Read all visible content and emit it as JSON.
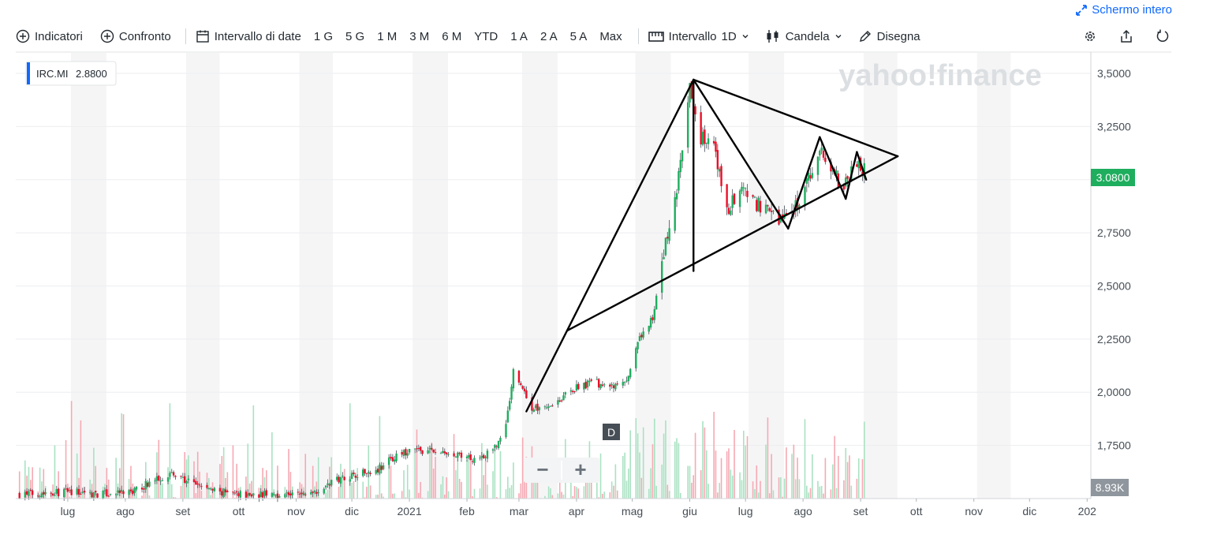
{
  "header": {
    "fullscreen_label": "Schermo intero"
  },
  "toolbar": {
    "indicators_label": "Indicatori",
    "compare_label": "Confronto",
    "date_range_label": "Intervallo di date",
    "ranges": [
      "1 G",
      "5 G",
      "1 M",
      "3 M",
      "6 M",
      "YTD",
      "1 A",
      "2 A",
      "5 A",
      "Max"
    ],
    "interval_label": "Intervallo",
    "interval_value": "1D",
    "chart_type_label": "Candela",
    "draw_label": "Disegna",
    "icons": [
      "settings-icon",
      "share-icon",
      "reset-icon"
    ]
  },
  "chart_data": {
    "type": "candlestick",
    "ticker": "IRC.MI",
    "ticker_value": "2.8800",
    "watermark": "yahoo!finance",
    "current_price_label": "3.0800",
    "volume_label": "8.93K",
    "interval_marker": "D",
    "zoom_controls": [
      "−",
      "+"
    ],
    "y_axis": {
      "ticks": [
        1.75,
        2.0,
        2.25,
        2.5,
        2.75,
        3.0,
        3.25,
        3.5
      ],
      "tick_labels": [
        "1,7500",
        "2,0000",
        "2,2500",
        "2,5000",
        "2,7500",
        "3,0000",
        "3,2500",
        "3,5000"
      ],
      "range": [
        1.5,
        3.6
      ]
    },
    "x_axis": {
      "start_date": "2020-06-03",
      "end_date": "2022-01-03",
      "tick_labels": [
        {
          "date": "2020-07-01",
          "label": "lug"
        },
        {
          "date": "2020-08-01",
          "label": "ago"
        },
        {
          "date": "2020-09-01",
          "label": "set"
        },
        {
          "date": "2020-10-01",
          "label": "ott"
        },
        {
          "date": "2020-11-01",
          "label": "nov"
        },
        {
          "date": "2020-12-01",
          "label": "dic"
        },
        {
          "date": "2021-01-01",
          "label": "2021"
        },
        {
          "date": "2021-02-01",
          "label": "feb"
        },
        {
          "date": "2021-03-01",
          "label": "mar"
        },
        {
          "date": "2021-04-01",
          "label": "apr"
        },
        {
          "date": "2021-05-01",
          "label": "mag"
        },
        {
          "date": "2021-06-01",
          "label": "giu"
        },
        {
          "date": "2021-07-01",
          "label": "lug"
        },
        {
          "date": "2021-08-01",
          "label": "ago"
        },
        {
          "date": "2021-09-01",
          "label": "set"
        },
        {
          "date": "2021-10-01",
          "label": "ott"
        },
        {
          "date": "2021-11-01",
          "label": "nov"
        },
        {
          "date": "2021-12-01",
          "label": "dic"
        },
        {
          "date": "2022-01-01",
          "label": "202"
        }
      ]
    },
    "price_series": [
      {
        "date": "2020-06-05",
        "close": 1.52
      },
      {
        "date": "2020-06-20",
        "close": 1.53
      },
      {
        "date": "2020-07-05",
        "close": 1.53
      },
      {
        "date": "2020-07-20",
        "close": 1.52
      },
      {
        "date": "2020-08-05",
        "close": 1.53
      },
      {
        "date": "2020-08-15",
        "close": 1.58
      },
      {
        "date": "2020-08-25",
        "close": 1.62
      },
      {
        "date": "2020-09-01",
        "close": 1.59
      },
      {
        "date": "2020-09-10",
        "close": 1.56
      },
      {
        "date": "2020-09-20",
        "close": 1.53
      },
      {
        "date": "2020-10-05",
        "close": 1.52
      },
      {
        "date": "2020-10-20",
        "close": 1.52
      },
      {
        "date": "2020-11-05",
        "close": 1.52
      },
      {
        "date": "2020-11-15",
        "close": 1.55
      },
      {
        "date": "2020-11-25",
        "close": 1.6
      },
      {
        "date": "2020-12-05",
        "close": 1.62
      },
      {
        "date": "2020-12-15",
        "close": 1.64
      },
      {
        "date": "2020-12-25",
        "close": 1.7
      },
      {
        "date": "2021-01-05",
        "close": 1.73
      },
      {
        "date": "2021-01-15",
        "close": 1.72
      },
      {
        "date": "2021-01-25",
        "close": 1.7
      },
      {
        "date": "2021-02-05",
        "close": 1.69
      },
      {
        "date": "2021-02-15",
        "close": 1.72
      },
      {
        "date": "2021-02-22",
        "close": 1.84
      },
      {
        "date": "2021-02-26",
        "close": 2.1
      },
      {
        "date": "2021-03-03",
        "close": 2.02
      },
      {
        "date": "2021-03-08",
        "close": 1.92
      },
      {
        "date": "2021-03-20",
        "close": 1.95
      },
      {
        "date": "2021-04-01",
        "close": 2.02
      },
      {
        "date": "2021-04-10",
        "close": 2.05
      },
      {
        "date": "2021-04-20",
        "close": 2.02
      },
      {
        "date": "2021-04-28",
        "close": 2.05
      },
      {
        "date": "2021-05-05",
        "close": 2.25
      },
      {
        "date": "2021-05-12",
        "close": 2.35
      },
      {
        "date": "2021-05-18",
        "close": 2.65
      },
      {
        "date": "2021-05-25",
        "close": 2.95
      },
      {
        "date": "2021-06-01",
        "close": 3.42
      },
      {
        "date": "2021-06-07",
        "close": 3.2
      },
      {
        "date": "2021-06-14",
        "close": 3.15
      },
      {
        "date": "2021-06-21",
        "close": 2.85
      },
      {
        "date": "2021-06-28",
        "close": 2.95
      },
      {
        "date": "2021-07-05",
        "close": 2.9
      },
      {
        "date": "2021-07-12",
        "close": 2.85
      },
      {
        "date": "2021-07-19",
        "close": 2.82
      },
      {
        "date": "2021-07-26",
        "close": 2.85
      },
      {
        "date": "2021-08-02",
        "close": 2.95
      },
      {
        "date": "2021-08-10",
        "close": 3.15
      },
      {
        "date": "2021-08-16",
        "close": 3.05
      },
      {
        "date": "2021-08-23",
        "close": 2.95
      },
      {
        "date": "2021-08-28",
        "close": 3.08
      },
      {
        "date": "2021-09-03",
        "close": 3.04
      }
    ],
    "drawings": [
      {
        "from": {
          "date": "2021-03-05",
          "price": 1.91
        },
        "to": {
          "date": "2021-06-03",
          "price": 3.47
        }
      },
      {
        "from": {
          "date": "2021-06-03",
          "price": 3.47
        },
        "to": {
          "date": "2021-07-24",
          "price": 2.77
        }
      },
      {
        "from": {
          "date": "2021-06-03",
          "price": 3.47
        },
        "to": {
          "date": "2021-06-03",
          "price": 2.57
        }
      },
      {
        "from": {
          "date": "2021-03-27",
          "price": 2.29
        },
        "to": {
          "date": "2021-09-21",
          "price": 3.11
        }
      },
      {
        "from": {
          "date": "2021-06-03",
          "price": 3.47
        },
        "to": {
          "date": "2021-09-21",
          "price": 3.11
        }
      },
      {
        "from": {
          "date": "2021-07-24",
          "price": 2.77
        },
        "to": {
          "date": "2021-08-10",
          "price": 3.2
        }
      },
      {
        "from": {
          "date": "2021-08-10",
          "price": 3.2
        },
        "to": {
          "date": "2021-08-24",
          "price": 2.91
        }
      },
      {
        "from": {
          "date": "2021-08-24",
          "price": 2.91
        },
        "to": {
          "date": "2021-08-30",
          "price": 3.13
        }
      },
      {
        "from": {
          "date": "2021-08-30",
          "price": 3.13
        },
        "to": {
          "date": "2021-09-04",
          "price": 3.0
        }
      }
    ]
  }
}
